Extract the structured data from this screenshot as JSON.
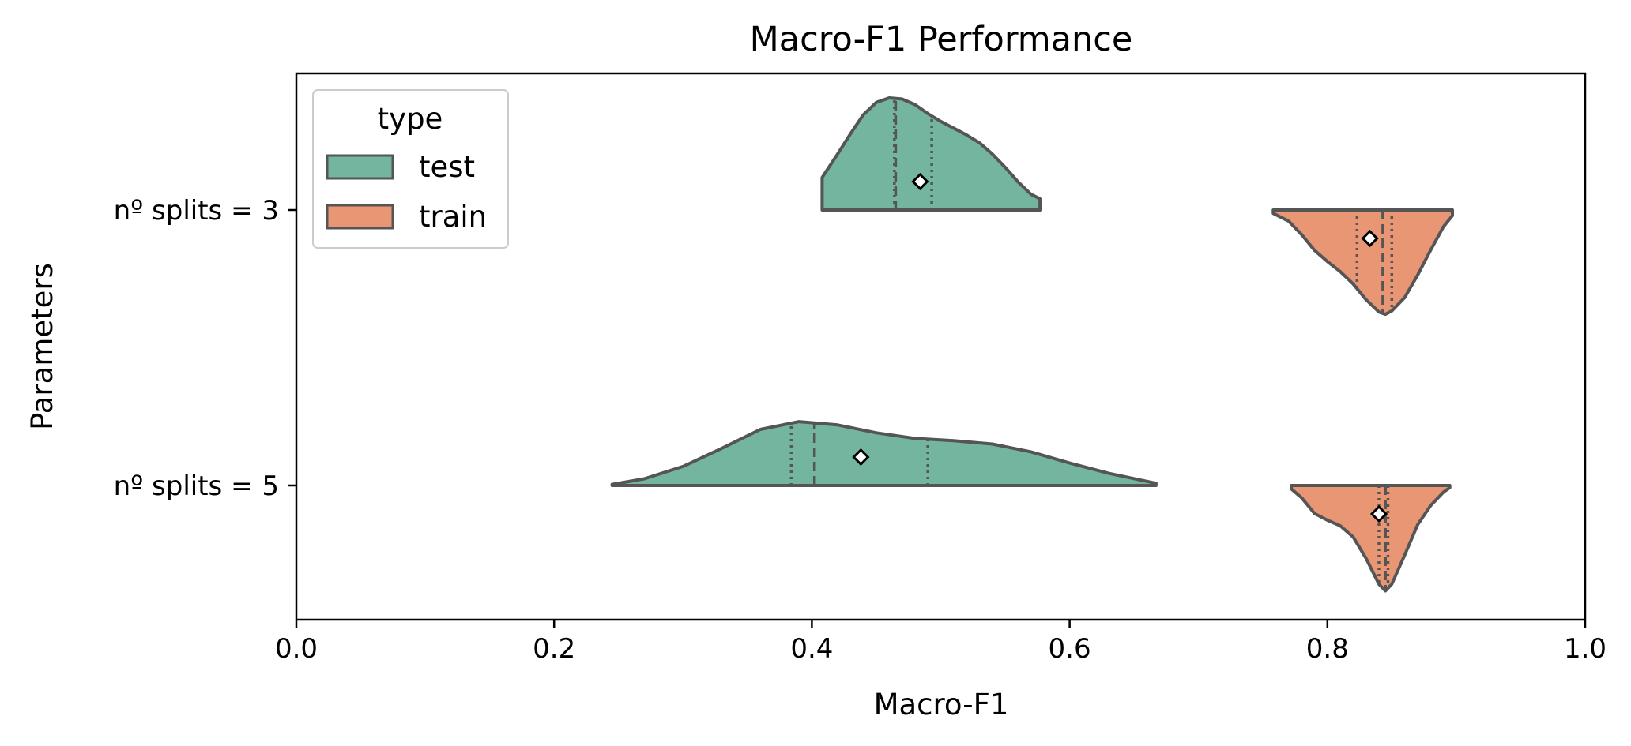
{
  "chart_data": {
    "type": "violin",
    "orientation": "horizontal",
    "title": "Macro-F1 Performance",
    "xlabel": "Macro-F1",
    "ylabel": "Parameters",
    "xlim": [
      0.0,
      1.0
    ],
    "xticks": [
      "0.0",
      "0.2",
      "0.4",
      "0.6",
      "0.8",
      "1.0"
    ],
    "categories": [
      "nº splits = 3",
      "nº splits = 5"
    ],
    "grid": false,
    "legend": {
      "title": "type",
      "placement": "top-left"
    },
    "series": [
      {
        "name": "test",
        "color": "#74b59f",
        "side": "upper",
        "groups": [
          {
            "category": "nº splits = 3",
            "min": 0.408,
            "max": 0.577,
            "q1": 0.464,
            "median": 0.465,
            "q3": 0.493,
            "mean": 0.484,
            "density": [
              [
                0.408,
                0.29
              ],
              [
                0.42,
                0.5
              ],
              [
                0.43,
                0.68
              ],
              [
                0.44,
                0.85
              ],
              [
                0.45,
                0.96
              ],
              [
                0.46,
                1.0
              ],
              [
                0.47,
                0.99
              ],
              [
                0.48,
                0.94
              ],
              [
                0.49,
                0.86
              ],
              [
                0.5,
                0.79
              ],
              [
                0.51,
                0.73
              ],
              [
                0.52,
                0.67
              ],
              [
                0.53,
                0.6
              ],
              [
                0.54,
                0.5
              ],
              [
                0.55,
                0.38
              ],
              [
                0.56,
                0.25
              ],
              [
                0.57,
                0.14
              ],
              [
                0.577,
                0.1
              ]
            ]
          },
          {
            "category": "nº splits = 5",
            "min": 0.245,
            "max": 0.667,
            "q1": 0.384,
            "median": 0.402,
            "q3": 0.49,
            "mean": 0.438,
            "density": [
              [
                0.245,
                0.01
              ],
              [
                0.27,
                0.06
              ],
              [
                0.3,
                0.17
              ],
              [
                0.33,
                0.33
              ],
              [
                0.36,
                0.5
              ],
              [
                0.39,
                0.57
              ],
              [
                0.42,
                0.54
              ],
              [
                0.45,
                0.47
              ],
              [
                0.48,
                0.42
              ],
              [
                0.51,
                0.4
              ],
              [
                0.54,
                0.37
              ],
              [
                0.57,
                0.3
              ],
              [
                0.6,
                0.2
              ],
              [
                0.63,
                0.11
              ],
              [
                0.667,
                0.02
              ]
            ]
          }
        ]
      },
      {
        "name": "train",
        "color": "#e99675",
        "side": "lower",
        "groups": [
          {
            "category": "nº splits = 3",
            "min": 0.758,
            "max": 0.897,
            "q1": 0.823,
            "median": 0.843,
            "q3": 0.85,
            "mean": 0.833,
            "density": [
              [
                0.758,
                0.03
              ],
              [
                0.77,
                0.1
              ],
              [
                0.78,
                0.22
              ],
              [
                0.79,
                0.36
              ],
              [
                0.8,
                0.46
              ],
              [
                0.81,
                0.55
              ],
              [
                0.82,
                0.66
              ],
              [
                0.83,
                0.8
              ],
              [
                0.84,
                0.91
              ],
              [
                0.845,
                0.93
              ],
              [
                0.85,
                0.9
              ],
              [
                0.86,
                0.78
              ],
              [
                0.87,
                0.58
              ],
              [
                0.88,
                0.36
              ],
              [
                0.89,
                0.15
              ],
              [
                0.897,
                0.05
              ]
            ]
          },
          {
            "category": "nº splits = 5",
            "min": 0.772,
            "max": 0.895,
            "q1": 0.84,
            "median": 0.845,
            "q3": 0.847,
            "mean": 0.84,
            "density": [
              [
                0.772,
                0.03
              ],
              [
                0.78,
                0.11
              ],
              [
                0.79,
                0.25
              ],
              [
                0.8,
                0.31
              ],
              [
                0.81,
                0.36
              ],
              [
                0.82,
                0.46
              ],
              [
                0.83,
                0.65
              ],
              [
                0.84,
                0.88
              ],
              [
                0.845,
                0.94
              ],
              [
                0.85,
                0.88
              ],
              [
                0.86,
                0.62
              ],
              [
                0.87,
                0.35
              ],
              [
                0.88,
                0.18
              ],
              [
                0.89,
                0.06
              ],
              [
                0.895,
                0.02
              ]
            ]
          }
        ]
      }
    ]
  }
}
